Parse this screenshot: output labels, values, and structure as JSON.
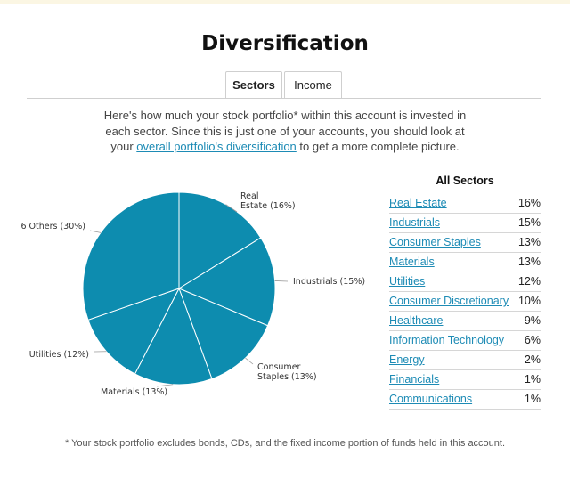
{
  "page": {
    "title": "Diversification",
    "tabs": [
      {
        "label": "Sectors",
        "active": true
      },
      {
        "label": "Income",
        "active": false
      }
    ],
    "intro": {
      "text_before": "Here's how much your stock portfolio* within this account is invested in each sector. Since this is just one of your accounts, you should look at your ",
      "link_text": "overall portfolio's diversification",
      "text_after": " to get a more complete picture."
    },
    "footnote": "* Your stock portfolio excludes bonds, CDs, and the fixed income portion of funds held in this account."
  },
  "sectors_panel": {
    "title": "All Sectors",
    "rows": [
      {
        "name": "Real Estate",
        "pct": "16%"
      },
      {
        "name": "Industrials",
        "pct": "15%"
      },
      {
        "name": "Consumer Staples",
        "pct": "13%"
      },
      {
        "name": "Materials",
        "pct": "13%"
      },
      {
        "name": "Utilities",
        "pct": "12%"
      },
      {
        "name": "Consumer Discretionary",
        "pct": "10%"
      },
      {
        "name": "Healthcare",
        "pct": "9%"
      },
      {
        "name": "Information Technology",
        "pct": "6%"
      },
      {
        "name": "Energy",
        "pct": "2%"
      },
      {
        "name": "Financials",
        "pct": "1%"
      },
      {
        "name": "Communications",
        "pct": "1%"
      }
    ]
  },
  "chart_data": {
    "type": "pie",
    "slices": [
      {
        "label": "Real Estate (16%)",
        "value": 16
      },
      {
        "label": "Industrials (15%)",
        "value": 15
      },
      {
        "label": "Consumer Staples (13%)",
        "value": 13
      },
      {
        "label": "Materials (13%)",
        "value": 13
      },
      {
        "label": "Utilities (12%)",
        "value": 12
      },
      {
        "label": "6 Others (30%)",
        "value": 30
      }
    ],
    "color": "#0d8caf",
    "stroke": "#ffffff"
  }
}
